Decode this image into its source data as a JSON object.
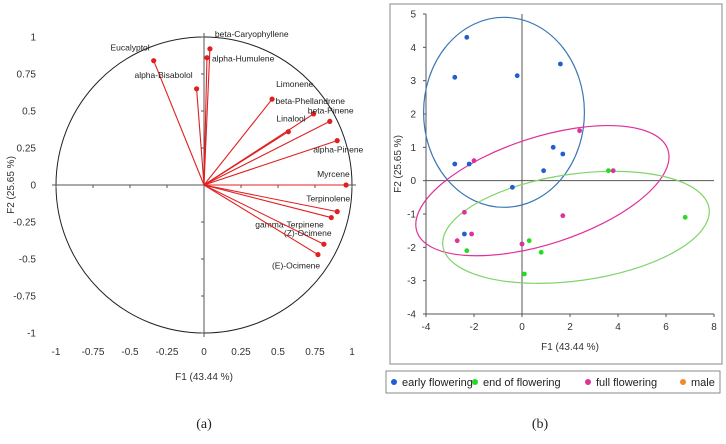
{
  "chart_data": [
    {
      "type": "biplot",
      "panel_label": "(a)",
      "xlabel": "F1 (43.44 %)",
      "ylabel": "F2 (25.65 %)",
      "xlim": [
        -1,
        1
      ],
      "ylim": [
        -1,
        1
      ],
      "x_ticks": [
        "-1",
        "-0.75",
        "-0.5",
        "-0.25",
        "0",
        "0.25",
        "0.5",
        "0.75",
        "1"
      ],
      "y_ticks": [
        "-1",
        "-0.75",
        "-0.5",
        "-0.25",
        "0",
        "0.25",
        "0.5",
        "0.75",
        "1"
      ],
      "unit_circle": true,
      "vectors": [
        {
          "name": "beta-Caryophyllene",
          "x": 0.04,
          "y": 0.92
        },
        {
          "name": "alpha-Humulene",
          "x": 0.02,
          "y": 0.86
        },
        {
          "name": "Eucalyptol",
          "x": -0.34,
          "y": 0.84
        },
        {
          "name": "alpha-Bisabolol",
          "x": -0.05,
          "y": 0.65
        },
        {
          "name": "Limonene",
          "x": 0.46,
          "y": 0.58
        },
        {
          "name": "beta-Phellandrene",
          "x": 0.74,
          "y": 0.48
        },
        {
          "name": "beta-Pinene",
          "x": 0.85,
          "y": 0.43
        },
        {
          "name": "Linalool",
          "x": 0.57,
          "y": 0.36
        },
        {
          "name": "alpha-Pinene",
          "x": 0.9,
          "y": 0.3
        },
        {
          "name": "Myrcene",
          "x": 0.96,
          "y": 0.0
        },
        {
          "name": "Terpinolene",
          "x": 0.9,
          "y": -0.18
        },
        {
          "name": "gamma-Terpinene",
          "x": 0.86,
          "y": -0.22
        },
        {
          "name": "(Z)-Ocimene",
          "x": 0.81,
          "y": -0.4
        },
        {
          "name": "(E)-Ocimene",
          "x": 0.77,
          "y": -0.47
        }
      ],
      "vector_color": "#e02020"
    },
    {
      "type": "scatter",
      "panel_label": "(b)",
      "xlabel": "F1 (43.44 %)",
      "ylabel": "F2 (25.65 %)",
      "xlim": [
        -4,
        8
      ],
      "ylim": [
        -4,
        5
      ],
      "x_ticks": [
        "-4",
        "-2",
        "0",
        "2",
        "4",
        "6",
        "8"
      ],
      "y_ticks": [
        "-4",
        "-3",
        "-2",
        "-1",
        "0",
        "1",
        "2",
        "3",
        "4",
        "5"
      ],
      "grid": false,
      "legend_position": "bottom",
      "series": [
        {
          "name": "early flowering",
          "color": "#1f5fd0",
          "points": [
            [
              -2.3,
              4.3
            ],
            [
              -2.8,
              3.1
            ],
            [
              -0.2,
              3.15
            ],
            [
              1.6,
              3.5
            ],
            [
              -2.2,
              0.5
            ],
            [
              -2.8,
              0.5
            ],
            [
              1.3,
              1.0
            ],
            [
              1.7,
              0.8
            ],
            [
              0.9,
              0.3
            ],
            [
              -0.4,
              -0.2
            ],
            [
              -2.4,
              -1.6
            ]
          ]
        },
        {
          "name": "end of flowering",
          "color": "#22dd22",
          "points": [
            [
              3.6,
              0.3
            ],
            [
              6.8,
              -1.1
            ],
            [
              0.3,
              -1.8
            ],
            [
              0.0,
              -1.9
            ],
            [
              0.8,
              -2.15
            ],
            [
              -2.3,
              -2.1
            ],
            [
              0.1,
              -2.8
            ]
          ]
        },
        {
          "name": "full flowering",
          "color": "#e0309a",
          "points": [
            [
              2.4,
              1.5
            ],
            [
              -2.0,
              0.6
            ],
            [
              3.8,
              0.3
            ],
            [
              -2.4,
              -0.95
            ],
            [
              1.7,
              -1.05
            ],
            [
              -2.7,
              -1.8
            ],
            [
              -2.1,
              -1.6
            ],
            [
              0.0,
              -1.9
            ]
          ]
        },
        {
          "name": "male",
          "color": "#f08a2a",
          "points": []
        }
      ],
      "ellipses": [
        {
          "color": "#3a78b5",
          "cx": -0.75,
          "cy": 2.05,
          "rx": 3.35,
          "ry": 2.85,
          "angle": 0
        },
        {
          "color": "#e0309a",
          "cx": 0.85,
          "cy": -0.3,
          "rx": 5.5,
          "ry": 1.6,
          "angle": 18
        },
        {
          "color": "#7fd46a",
          "cx": 2.25,
          "cy": -1.4,
          "rx": 5.6,
          "ry": 1.6,
          "angle": 8
        }
      ]
    }
  ]
}
